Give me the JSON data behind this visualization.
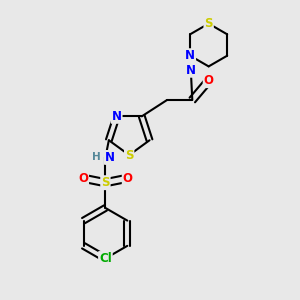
{
  "background_color": "#e8e8e8",
  "figsize": [
    3.0,
    3.0
  ],
  "dpi": 100,
  "atom_colors": {
    "S": "#cccc00",
    "N": "#0000ff",
    "O": "#ff0000",
    "Cl": "#00aa00",
    "C": "#000000",
    "H": "#558899"
  },
  "bond_color": "#000000",
  "bond_width": 1.5,
  "font_size_atom": 8.5,
  "font_size_h": 7.5
}
